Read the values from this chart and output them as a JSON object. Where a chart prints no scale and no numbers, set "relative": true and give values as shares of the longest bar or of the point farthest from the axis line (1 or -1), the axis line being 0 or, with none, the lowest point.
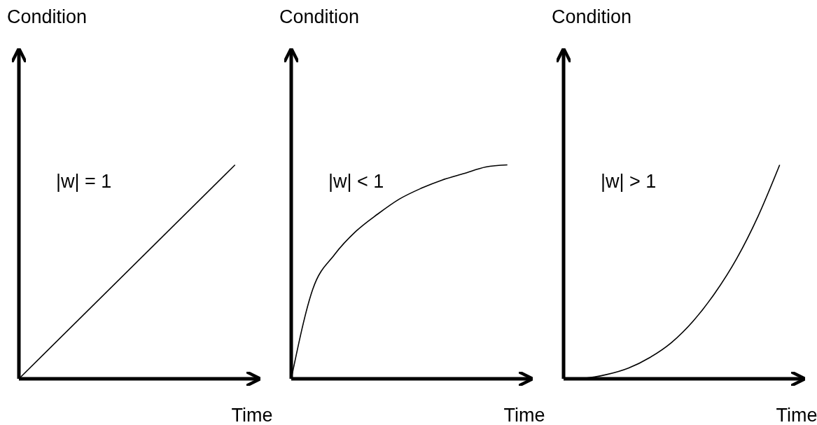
{
  "chart_data": [
    {
      "type": "line",
      "relative": true,
      "ylabel": "Condition",
      "xlabel": "Time",
      "annotations": [
        "|w| = 1"
      ],
      "categories": [
        null,
        null
      ],
      "series": [
        {
          "color": "#000000",
          "values": [
            0,
            1
          ]
        }
      ]
    },
    {
      "type": "line",
      "relative": true,
      "ylabel": "Condition",
      "xlabel": "Time",
      "annotations": [
        "|w| < 1"
      ],
      "categories": [
        null,
        null,
        null,
        null,
        null,
        null,
        null,
        null,
        null,
        null,
        null
      ],
      "series": [
        {
          "color": "#000000",
          "values": [
            0,
            0.42,
            0.58,
            0.69,
            0.77,
            0.84,
            0.89,
            0.93,
            0.96,
            0.99,
            1
          ]
        }
      ]
    },
    {
      "type": "line",
      "relative": true,
      "ylabel": "Condition",
      "xlabel": "Time",
      "annotations": [
        "|w| > 1"
      ],
      "categories": [
        null,
        null,
        null,
        null,
        null,
        null,
        null,
        null,
        null,
        null,
        null
      ],
      "series": [
        {
          "color": "#000000",
          "values": [
            0,
            0.003,
            0.02,
            0.05,
            0.1,
            0.17,
            0.27,
            0.4,
            0.56,
            0.76,
            1
          ]
        }
      ]
    }
  ]
}
